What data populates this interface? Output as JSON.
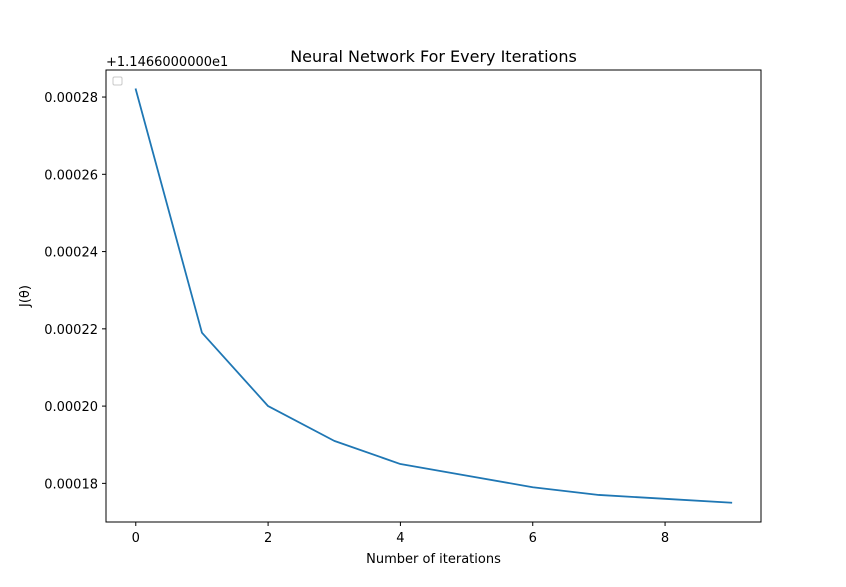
{
  "chart_data": {
    "type": "line",
    "title": "Neural Network For Every Iterations",
    "xlabel": "Number of iterations",
    "ylabel": "J(θ)",
    "y_offset_label": "+1.1466000000e1",
    "xlim": [
      -0.45,
      9.45
    ],
    "ylim": [
      0.00017,
      0.000287
    ],
    "x_ticks": [
      0,
      2,
      4,
      6,
      8
    ],
    "y_ticks": [
      0.00018,
      0.0002,
      0.00022,
      0.00024,
      0.00026,
      0.00028
    ],
    "y_tick_labels": [
      "0.00018",
      "0.00020",
      "0.00022",
      "0.00024",
      "0.00026",
      "0.00028"
    ],
    "grid": false,
    "legend": "upper-left (empty)",
    "series": [
      {
        "color": "#1f77b4",
        "x": [
          0,
          1,
          2,
          3,
          4,
          5,
          6,
          7,
          8,
          9
        ],
        "y": [
          0.000282,
          0.000219,
          0.0002,
          0.000191,
          0.000185,
          0.000182,
          0.000179,
          0.000177,
          0.000176,
          0.000175
        ]
      }
    ]
  }
}
